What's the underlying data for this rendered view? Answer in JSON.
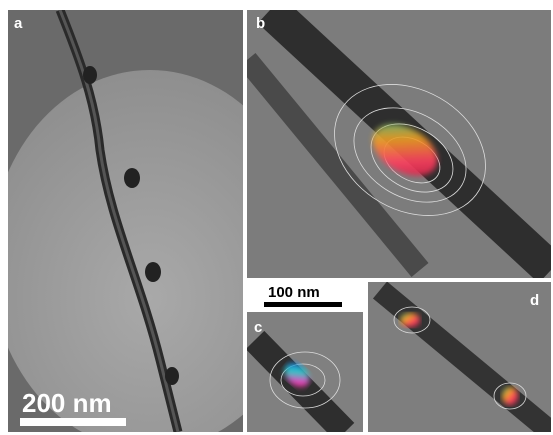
{
  "panels": [
    {
      "label": "a",
      "scale_bar": "200 nm"
    },
    {
      "label": "b"
    },
    {
      "label": "c",
      "scale_bar": "100 nm"
    },
    {
      "label": "d"
    }
  ]
}
